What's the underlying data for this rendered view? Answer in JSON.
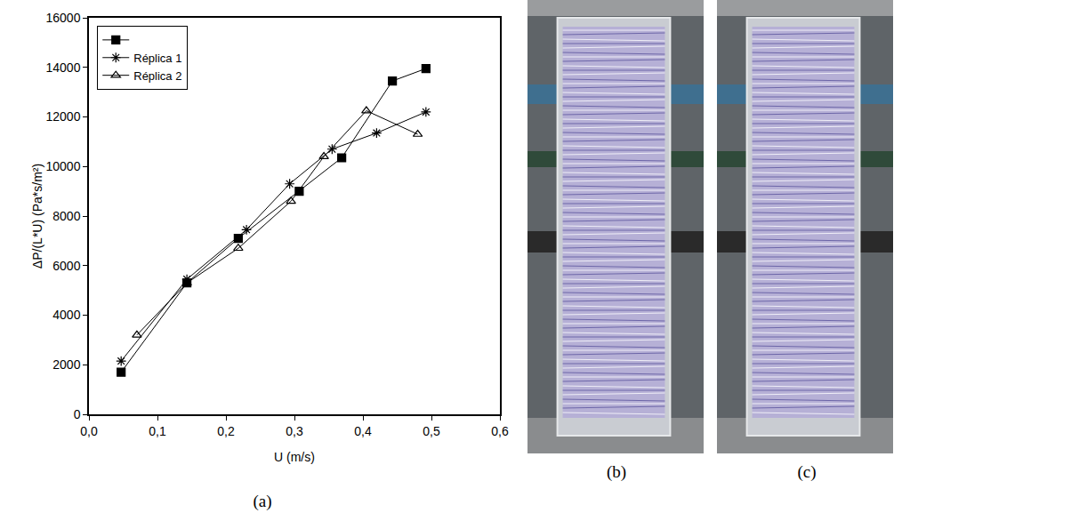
{
  "chart_data": {
    "type": "line",
    "x_label": "U (m/s)",
    "y_label": "ΔP/(L*U) (Pa*s/m²)",
    "xlim": [
      0,
      0.6
    ],
    "xticks": [
      {
        "value": 0,
        "label": "0,0"
      },
      {
        "value": 0.1,
        "label": "0,1"
      },
      {
        "value": 0.2,
        "label": "0,2"
      },
      {
        "value": 0.3,
        "label": "0,3"
      },
      {
        "value": 0.4,
        "label": "0,4"
      },
      {
        "value": 0.5,
        "label": "0,5"
      },
      {
        "value": 0.6,
        "label": "0,6"
      }
    ],
    "ylim": [
      0,
      16000
    ],
    "yticks": [
      0,
      2000,
      4000,
      6000,
      8000,
      10000,
      12000,
      14000,
      16000
    ],
    "legend": "top-left",
    "grid": false,
    "series": [
      {
        "color": "#000000",
        "marker": "square",
        "line_style": "solid",
        "x": [
          0.047,
          0.143,
          0.218,
          0.307,
          0.369,
          0.443,
          0.492
        ],
        "values": [
          1700,
          5300,
          7100,
          9000,
          10350,
          13450,
          13950
        ]
      },
      {
        "name": "Réplica 1",
        "color": "#000000",
        "marker": "asterisk",
        "line_style": "solid",
        "x": [
          0.047,
          0.143,
          0.23,
          0.293,
          0.355,
          0.42,
          0.492
        ],
        "values": [
          2150,
          5450,
          7450,
          9300,
          10700,
          11350,
          12200
        ]
      },
      {
        "name": "Réplica 2",
        "color": "#000000",
        "marker": "triangle-open",
        "line_style": "solid",
        "x": [
          0.07,
          0.143,
          0.218,
          0.295,
          0.343,
          0.405,
          0.48
        ],
        "values": [
          3200,
          5300,
          6700,
          8600,
          10400,
          12250,
          11300
        ]
      }
    ]
  },
  "panel_labels": [
    "(a)",
    "(b)",
    "(c)"
  ]
}
